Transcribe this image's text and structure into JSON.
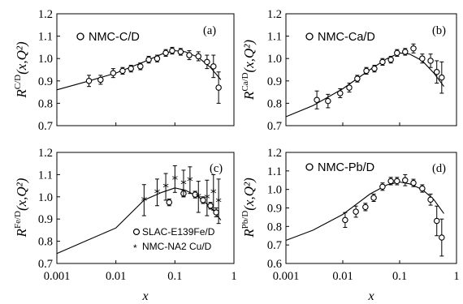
{
  "chart_data": [
    {
      "panel_label": "(a)",
      "type": "scatter",
      "xscale": "log",
      "xlim": [
        0.001,
        1
      ],
      "ylim": [
        0.7,
        1.2
      ],
      "ylabel": {
        "base": "R",
        "sup": "C/D",
        "args": "(x,Q²)"
      },
      "xlabel": "",
      "xticks": [],
      "yticks": [
        "0.7",
        "0.8",
        "0.9",
        "1.0",
        "1.1",
        "1.2"
      ],
      "series": [
        {
          "name": "NMC-C/D",
          "marker": "circle",
          "x": [
            0.0035,
            0.0055,
            0.009,
            0.013,
            0.018,
            0.026,
            0.036,
            0.05,
            0.07,
            0.09,
            0.125,
            0.175,
            0.25,
            0.35,
            0.45,
            0.55
          ],
          "y": [
            0.9,
            0.905,
            0.935,
            0.945,
            0.955,
            0.965,
            0.995,
            1.0,
            1.025,
            1.035,
            1.03,
            1.015,
            1.01,
            0.985,
            0.965,
            0.87
          ],
          "err": [
            0.025,
            0.02,
            0.02,
            0.015,
            0.015,
            0.015,
            0.015,
            0.015,
            0.015,
            0.015,
            0.015,
            0.02,
            0.02,
            0.03,
            0.05,
            0.07
          ]
        }
      ],
      "curve": {
        "x": [
          0.001,
          0.003,
          0.01,
          0.03,
          0.06,
          0.1,
          0.15,
          0.25,
          0.4,
          0.6
        ],
        "y": [
          0.86,
          0.895,
          0.935,
          0.985,
          1.02,
          1.035,
          1.03,
          1.005,
          0.96,
          0.905
        ]
      }
    },
    {
      "panel_label": "(b)",
      "type": "scatter",
      "xscale": "log",
      "xlim": [
        0.001,
        1
      ],
      "ylim": [
        0.7,
        1.2
      ],
      "ylabel": {
        "base": "R",
        "sup": "Ca/D",
        "args": "(x,Q²)"
      },
      "xlabel": "",
      "xticks": [],
      "yticks": [
        "0.7",
        "0.8",
        "0.9",
        "1.0",
        "1.1",
        "1.2"
      ],
      "series": [
        {
          "name": "NMC-Ca/D",
          "marker": "circle",
          "x": [
            0.0035,
            0.0055,
            0.009,
            0.013,
            0.018,
            0.026,
            0.036,
            0.05,
            0.07,
            0.09,
            0.125,
            0.175,
            0.25,
            0.35,
            0.45,
            0.55
          ],
          "y": [
            0.815,
            0.81,
            0.845,
            0.87,
            0.91,
            0.945,
            0.955,
            0.985,
            0.995,
            1.025,
            1.03,
            1.045,
            1.0,
            0.99,
            0.94,
            0.915
          ],
          "err": [
            0.04,
            0.03,
            0.02,
            0.02,
            0.015,
            0.015,
            0.015,
            0.015,
            0.015,
            0.015,
            0.015,
            0.02,
            0.02,
            0.03,
            0.05,
            0.07
          ]
        }
      ],
      "curve": {
        "x": [
          0.001,
          0.003,
          0.01,
          0.03,
          0.06,
          0.1,
          0.15,
          0.25,
          0.4,
          0.6
        ],
        "y": [
          0.74,
          0.79,
          0.865,
          0.95,
          1.0,
          1.025,
          1.02,
          0.99,
          0.935,
          0.875
        ]
      }
    },
    {
      "panel_label": "(c)",
      "type": "scatter",
      "xscale": "log",
      "xlim": [
        0.001,
        1
      ],
      "ylim": [
        0.7,
        1.2
      ],
      "ylabel": {
        "base": "R",
        "sup": "Fe/D",
        "args": "(x,Q²)"
      },
      "xlabel": "x",
      "xticks": [
        "0.001",
        "0.01",
        "0.1",
        "1"
      ],
      "yticks": [
        "0.7",
        "0.8",
        "0.9",
        "1.0",
        "1.1",
        "1.2"
      ],
      "series": [
        {
          "name": "SLAC-E139Fe/D",
          "marker": "circle",
          "x": [
            0.08,
            0.14,
            0.22,
            0.3,
            0.4,
            0.5
          ],
          "y": [
            0.975,
            1.015,
            1.01,
            0.985,
            0.96,
            0.93
          ],
          "err": [
            0.015,
            0.015,
            0.015,
            0.015,
            0.015,
            0.02
          ]
        },
        {
          "name": "NMC-NA2 Cu/D",
          "marker": "star",
          "x": [
            0.03,
            0.05,
            0.07,
            0.1,
            0.14,
            0.18,
            0.25,
            0.35,
            0.45,
            0.55
          ],
          "y": [
            0.985,
            1.02,
            1.045,
            1.08,
            1.06,
            1.075,
            1.0,
            0.995,
            1.02,
            0.98
          ],
          "err": [
            0.07,
            0.06,
            0.06,
            0.06,
            0.06,
            0.06,
            0.07,
            0.08,
            0.08,
            0.1
          ]
        }
      ],
      "curve": {
        "x": [
          0.001,
          0.003,
          0.01,
          0.03,
          0.06,
          0.1,
          0.15,
          0.25,
          0.4,
          0.6
        ],
        "y": [
          0.745,
          0.8,
          0.86,
          0.985,
          1.02,
          1.04,
          1.03,
          1.0,
          0.955,
          0.895
        ]
      }
    },
    {
      "panel_label": "(d)",
      "type": "scatter",
      "xscale": "log",
      "xlim": [
        0.001,
        1
      ],
      "ylim": [
        0.6,
        1.2
      ],
      "ylabel": {
        "base": "R",
        "sup": "Pb/D",
        "args": "(x,Q²)"
      },
      "xlabel": "x",
      "xticks": [
        "0.001",
        "0.01",
        "0.1",
        "1"
      ],
      "yticks": [
        "0.6",
        "0.7",
        "0.8",
        "0.9",
        "1.0",
        "1.1",
        "1.2"
      ],
      "series": [
        {
          "name": "NMC-Pb/D",
          "marker": "circle",
          "x": [
            0.011,
            0.017,
            0.025,
            0.035,
            0.05,
            0.07,
            0.09,
            0.125,
            0.175,
            0.25,
            0.35,
            0.45,
            0.55
          ],
          "y": [
            0.835,
            0.88,
            0.905,
            0.955,
            1.015,
            1.045,
            1.045,
            1.05,
            1.035,
            1.005,
            0.945,
            0.83,
            0.74
          ],
          "err": [
            0.04,
            0.03,
            0.02,
            0.02,
            0.02,
            0.02,
            0.02,
            0.03,
            0.02,
            0.02,
            0.03,
            0.08,
            0.1
          ]
        }
      ],
      "curve": {
        "x": [
          0.001,
          0.003,
          0.01,
          0.03,
          0.06,
          0.1,
          0.15,
          0.25,
          0.4,
          0.6
        ],
        "y": [
          0.725,
          0.78,
          0.865,
          0.975,
          1.025,
          1.04,
          1.03,
          1.0,
          0.945,
          0.87
        ]
      }
    }
  ]
}
